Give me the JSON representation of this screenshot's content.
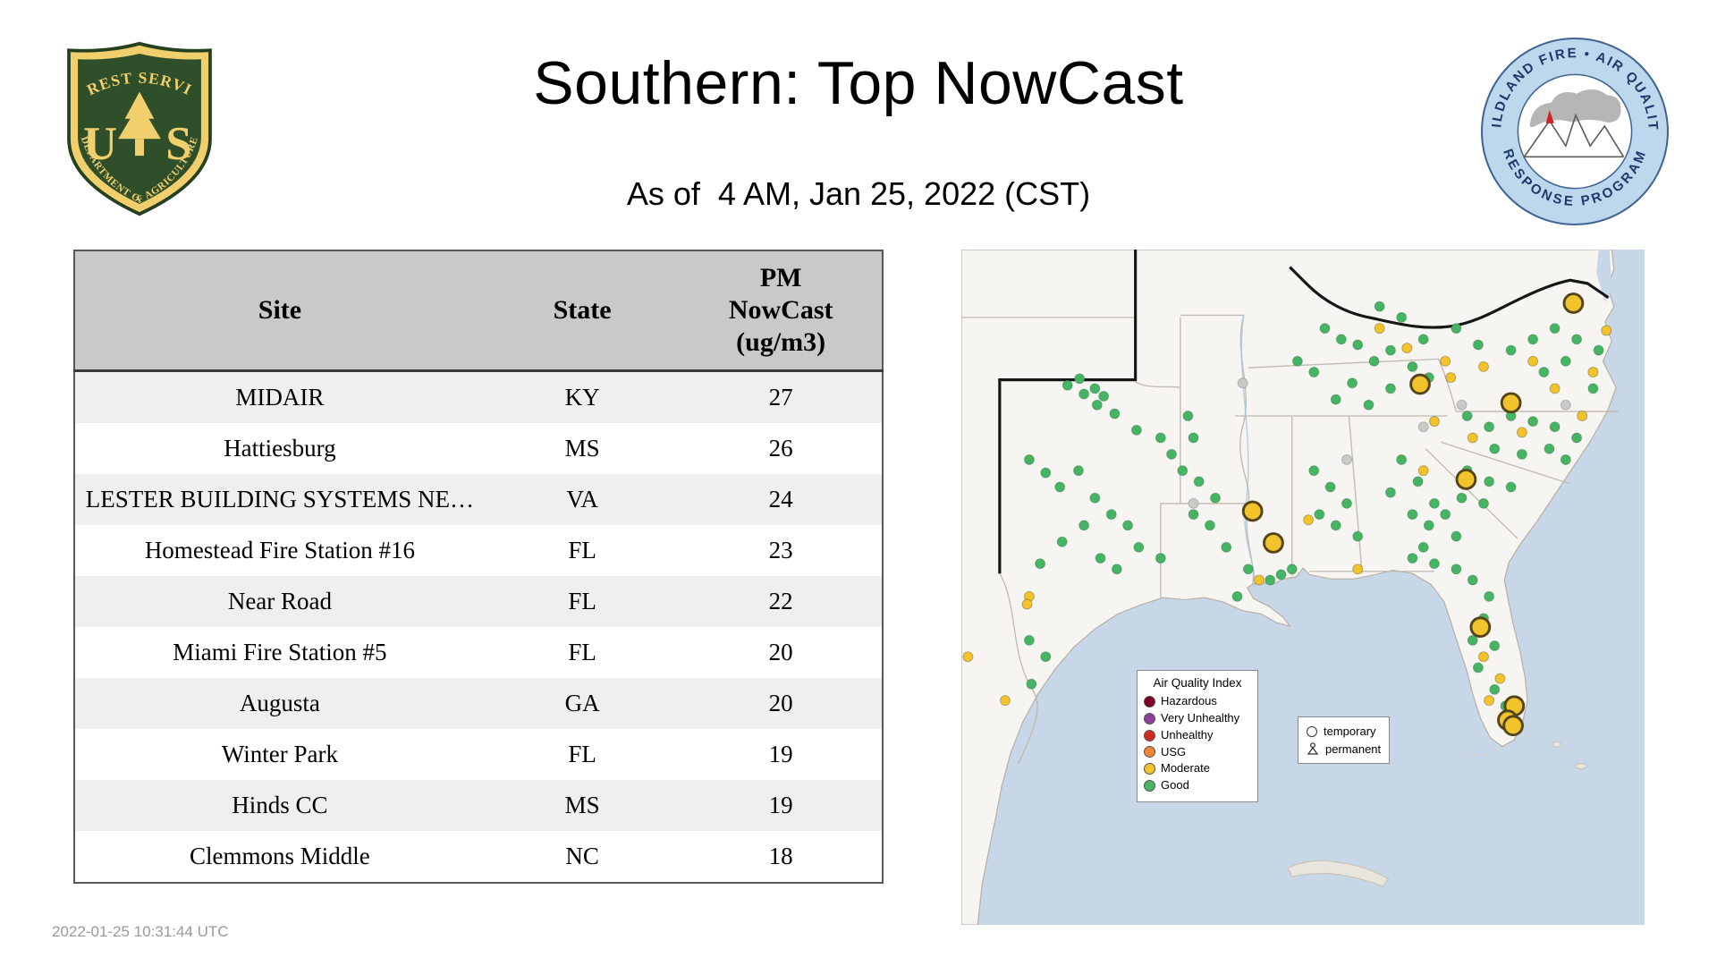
{
  "header": {
    "title": "Southern: Top NowCast",
    "subtitle": "As of  4 AM, Jan 25, 2022 (CST)"
  },
  "logos": {
    "usfs": {
      "top_arc": "FOREST SERVICE",
      "letter_left": "U",
      "letter_right": "S",
      "bottom_arc": "DEPARTMENT OF AGRICULTURE"
    },
    "program": {
      "top_arc": "WILDLAND FIRE • AIR QUALITY",
      "bottom_arc": "RESPONSE PROGRAM"
    }
  },
  "table": {
    "columns": [
      "Site",
      "State",
      "PM\nNowCast\n(ug/m3)"
    ],
    "rows": [
      [
        "MIDAIR",
        "KY",
        "27"
      ],
      [
        "Hattiesburg",
        "MS",
        "26"
      ],
      [
        "LESTER BUILDING SYSTEMS NE…",
        "VA",
        "24"
      ],
      [
        "Homestead Fire Station #16",
        "FL",
        "23"
      ],
      [
        "Near Road",
        "FL",
        "22"
      ],
      [
        "Miami Fire Station #5",
        "FL",
        "20"
      ],
      [
        "Augusta",
        "GA",
        "20"
      ],
      [
        "Winter Park",
        "FL",
        "19"
      ],
      [
        "Hinds CC",
        "MS",
        "19"
      ],
      [
        "Clemmons Middle",
        "NC",
        "18"
      ]
    ]
  },
  "footer": {
    "timestamp": "2022-01-25 10:31:44 UTC"
  },
  "chart_data": {
    "type": "table",
    "title": "Southern: Top NowCast",
    "subtitle": "As of  4 AM, Jan 25, 2022 (CST)",
    "columns": [
      "Site",
      "State",
      "PM NowCast (ug/m3)"
    ],
    "rows": [
      [
        "MIDAIR",
        "KY",
        27
      ],
      [
        "Hattiesburg",
        "MS",
        26
      ],
      [
        "LESTER BUILDING SYSTEMS NE…",
        "VA",
        24
      ],
      [
        "Homestead Fire Station #16",
        "FL",
        23
      ],
      [
        "Near Road",
        "FL",
        22
      ],
      [
        "Miami Fire Station #5",
        "FL",
        20
      ],
      [
        "Augusta",
        "GA",
        20
      ],
      [
        "Winter Park",
        "FL",
        19
      ],
      [
        "Hinds CC",
        "MS",
        19
      ],
      [
        "Clemmons Middle",
        "NC",
        18
      ]
    ]
  },
  "map": {
    "legend_title": "Air Quality Index",
    "legend_items": [
      {
        "label": "Hazardous",
        "color": "#7e0023"
      },
      {
        "label": "Very Unhealthy",
        "color": "#8f3f97"
      },
      {
        "label": "Unhealthy",
        "color": "#cf2d23"
      },
      {
        "label": "USG",
        "color": "#ef8533"
      },
      {
        "label": "Moderate",
        "color": "#f3c32c"
      },
      {
        "label": "Good",
        "color": "#45b564"
      }
    ],
    "symbol_legend": [
      {
        "symbol": "circle",
        "label": "temporary"
      },
      {
        "symbol": "person",
        "label": "permanent"
      }
    ],
    "colors": {
      "good": "#45b564",
      "moderate": "#f3c32c",
      "gray": "#c9c9c9",
      "temp_ring": "#55451a",
      "water": "#c7d7e8",
      "land": "#f7f5f1"
    },
    "dots": {
      "good": [
        [
          97,
          124
        ],
        [
          122,
          127
        ],
        [
          130,
          134
        ],
        [
          124,
          142
        ],
        [
          108,
          118
        ],
        [
          112,
          132
        ],
        [
          140,
          150
        ],
        [
          160,
          165
        ],
        [
          62,
          192
        ],
        [
          77,
          204
        ],
        [
          90,
          217
        ],
        [
          107,
          202
        ],
        [
          122,
          227
        ],
        [
          137,
          242
        ],
        [
          152,
          252
        ],
        [
          112,
          252
        ],
        [
          92,
          267
        ],
        [
          127,
          282
        ],
        [
          142,
          292
        ],
        [
          72,
          287
        ],
        [
          162,
          272
        ],
        [
          182,
          282
        ],
        [
          77,
          372
        ],
        [
          64,
          397
        ],
        [
          62,
          357
        ],
        [
          212,
          242
        ],
        [
          227,
          252
        ],
        [
          242,
          272
        ],
        [
          262,
          292
        ],
        [
          282,
          302
        ],
        [
          232,
          227
        ],
        [
          217,
          212
        ],
        [
          202,
          202
        ],
        [
          252,
          317
        ],
        [
          207,
          152
        ],
        [
          212,
          172
        ],
        [
          182,
          172
        ],
        [
          192,
          187
        ],
        [
          332,
          72
        ],
        [
          347,
          82
        ],
        [
          362,
          87
        ],
        [
          377,
          102
        ],
        [
          392,
          92
        ],
        [
          412,
          107
        ],
        [
          427,
          117
        ],
        [
          392,
          127
        ],
        [
          357,
          122
        ],
        [
          322,
          112
        ],
        [
          307,
          102
        ],
        [
          342,
          137
        ],
        [
          372,
          142
        ],
        [
          422,
          82
        ],
        [
          452,
          72
        ],
        [
          472,
          87
        ],
        [
          382,
          52
        ],
        [
          402,
          62
        ],
        [
          502,
          92
        ],
        [
          522,
          82
        ],
        [
          542,
          72
        ],
        [
          562,
          82
        ],
        [
          582,
          92
        ],
        [
          532,
          112
        ],
        [
          552,
          102
        ],
        [
          577,
          127
        ],
        [
          462,
          152
        ],
        [
          482,
          162
        ],
        [
          502,
          152
        ],
        [
          522,
          157
        ],
        [
          542,
          162
        ],
        [
          562,
          172
        ],
        [
          537,
          182
        ],
        [
          512,
          187
        ],
        [
          487,
          182
        ],
        [
          552,
          192
        ],
        [
          462,
          202
        ],
        [
          482,
          212
        ],
        [
          502,
          217
        ],
        [
          477,
          232
        ],
        [
          457,
          227
        ],
        [
          402,
          192
        ],
        [
          417,
          212
        ],
        [
          432,
          232
        ],
        [
          412,
          242
        ],
        [
          392,
          222
        ],
        [
          427,
          252
        ],
        [
          442,
          242
        ],
        [
          452,
          262
        ],
        [
          422,
          272
        ],
        [
          322,
          202
        ],
        [
          337,
          217
        ],
        [
          352,
          232
        ],
        [
          342,
          252
        ],
        [
          327,
          242
        ],
        [
          362,
          262
        ],
        [
          452,
          292
        ],
        [
          467,
          302
        ],
        [
          482,
          317
        ],
        [
          477,
          337
        ],
        [
          467,
          357
        ],
        [
          487,
          362
        ],
        [
          472,
          382
        ],
        [
          487,
          402
        ],
        [
          497,
          417
        ],
        [
          432,
          287
        ],
        [
          412,
          282
        ],
        [
          292,
          297
        ],
        [
          302,
          292
        ]
      ],
      "moderate": [
        [
          382,
          72
        ],
        [
          407,
          90
        ],
        [
          442,
          102
        ],
        [
          477,
          107
        ],
        [
          522,
          102
        ],
        [
          542,
          127
        ],
        [
          577,
          112
        ],
        [
          432,
          157
        ],
        [
          467,
          172
        ],
        [
          512,
          167
        ],
        [
          422,
          202
        ],
        [
          317,
          247
        ],
        [
          362,
          292
        ],
        [
          272,
          302
        ],
        [
          477,
          372
        ],
        [
          492,
          392
        ],
        [
          482,
          412
        ],
        [
          62,
          317
        ],
        [
          60,
          324
        ],
        [
          6,
          372
        ],
        [
          40,
          412
        ],
        [
          589,
          74
        ],
        [
          567,
          152
        ],
        [
          447,
          117
        ]
      ],
      "gray": [
        [
          212,
          232
        ],
        [
          422,
          162
        ],
        [
          457,
          142
        ],
        [
          552,
          142
        ],
        [
          257,
          122
        ],
        [
          352,
          192
        ]
      ],
      "temporary": [
        [
          559,
          49
        ],
        [
          419,
          123
        ],
        [
          502,
          140
        ],
        [
          461,
          210
        ],
        [
          266,
          239
        ],
        [
          285,
          268
        ],
        [
          474,
          345
        ],
        [
          505,
          417
        ],
        [
          499,
          430
        ],
        [
          504,
          435
        ]
      ]
    }
  }
}
